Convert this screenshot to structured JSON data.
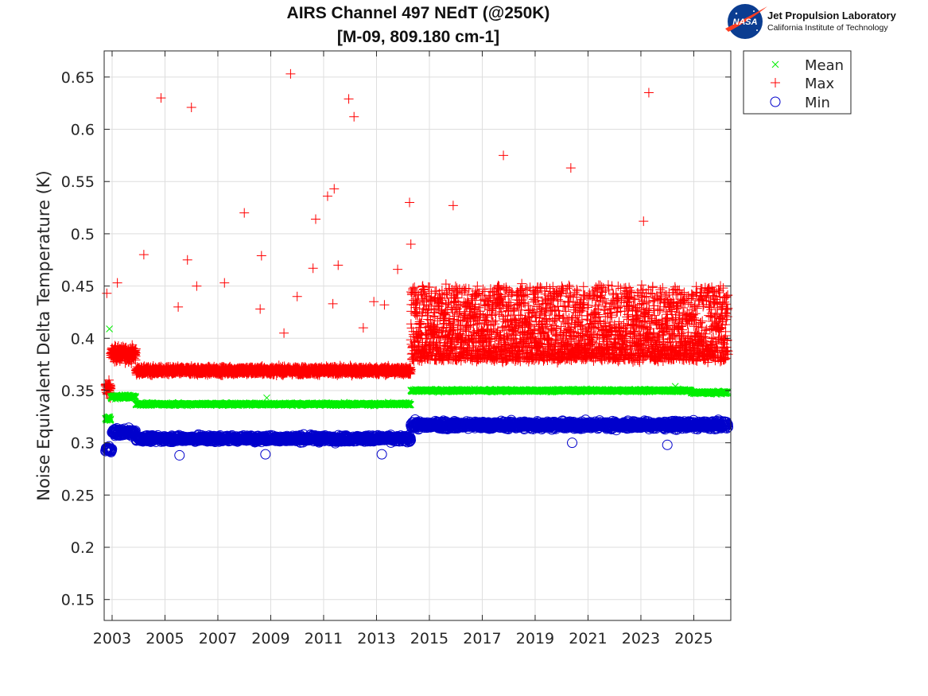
{
  "logo": {
    "name": "Jet Propulsion Laboratory",
    "subtitle": "California Institute of Technology",
    "badge": "NASA"
  },
  "colors": {
    "mean": "#00ee00",
    "max": "#ff0000",
    "min": "#0000cc"
  },
  "chart_data": {
    "type": "scatter",
    "title": "AIRS Channel 497 NEdT (@250K)",
    "subtitle": "[M-09, 809.180 cm-1]",
    "xlabel": "",
    "ylabel": "Noise Equivalent Delta Temperature (K)",
    "xlim": [
      2002.7,
      2026.4
    ],
    "ylim": [
      0.13,
      0.675
    ],
    "xticks": [
      2003,
      2005,
      2007,
      2009,
      2011,
      2013,
      2015,
      2017,
      2019,
      2021,
      2023,
      2025
    ],
    "xtick_labels": [
      "2003",
      "2005",
      "2007",
      "2009",
      "2011",
      "2013",
      "2015",
      "2017",
      "2019",
      "2021",
      "2023",
      "2025"
    ],
    "yticks": [
      0.15,
      0.2,
      0.25,
      0.3,
      0.35,
      0.4,
      0.45,
      0.5,
      0.55,
      0.6,
      0.65
    ],
    "ytick_labels": [
      "0.15",
      "0.2",
      "0.25",
      "0.3",
      "0.35",
      "0.4",
      "0.45",
      "0.5",
      "0.55",
      "0.6",
      "0.65"
    ],
    "grid": true,
    "legend_position": "outside-top-right",
    "series": [
      {
        "name": "Mean",
        "marker": "x",
        "segments": [
          {
            "x": [
              2002.75,
              2002.95
            ],
            "level": 0.323,
            "spread": 0.004
          },
          {
            "x": [
              2002.95,
              2003.9
            ],
            "level": 0.344,
            "spread": 0.003
          },
          {
            "x": [
              2003.9,
              2014.3
            ],
            "level": 0.337,
            "spread": 0.002
          },
          {
            "x": [
              2014.3,
              2024.9
            ],
            "level": 0.35,
            "spread": 0.002
          },
          {
            "x": [
              2024.9,
              2026.3
            ],
            "level": 0.348,
            "spread": 0.002
          }
        ],
        "outliers": [
          [
            2002.9,
            0.409
          ],
          [
            2008.85,
            0.343
          ],
          [
            2024.3,
            0.354
          ]
        ]
      },
      {
        "name": "Max",
        "marker": "+",
        "segments": [
          {
            "x": [
              2002.75,
              2002.95
            ],
            "level": 0.352,
            "spread": 0.012
          },
          {
            "x": [
              2002.95,
              2003.9
            ],
            "level": 0.385,
            "spread": 0.012
          },
          {
            "x": [
              2003.9,
              2014.3
            ],
            "level": 0.369,
            "spread": 0.006
          },
          {
            "x": [
              2014.3,
              2026.3
            ],
            "level": 0.405,
            "spread": 0.035
          }
        ],
        "outliers": [
          [
            2002.8,
            0.443
          ],
          [
            2003.2,
            0.453
          ],
          [
            2004.2,
            0.48
          ],
          [
            2004.85,
            0.63
          ],
          [
            2005.85,
            0.475
          ],
          [
            2006.0,
            0.621
          ],
          [
            2006.2,
            0.45
          ],
          [
            2007.25,
            0.453
          ],
          [
            2008.0,
            0.52
          ],
          [
            2008.65,
            0.479
          ],
          [
            2008.6,
            0.428
          ],
          [
            2009.75,
            0.653
          ],
          [
            2010.0,
            0.44
          ],
          [
            2010.6,
            0.467
          ],
          [
            2010.7,
            0.514
          ],
          [
            2011.15,
            0.536
          ],
          [
            2011.4,
            0.543
          ],
          [
            2011.55,
            0.47
          ],
          [
            2011.35,
            0.433
          ],
          [
            2011.95,
            0.629
          ],
          [
            2012.15,
            0.612
          ],
          [
            2012.9,
            0.435
          ],
          [
            2013.8,
            0.466
          ],
          [
            2014.25,
            0.53
          ],
          [
            2014.3,
            0.49
          ],
          [
            2015.9,
            0.527
          ],
          [
            2017.8,
            0.575
          ],
          [
            2020.35,
            0.563
          ],
          [
            2023.1,
            0.512
          ],
          [
            2023.3,
            0.635
          ],
          [
            2005.5,
            0.43
          ],
          [
            2009.5,
            0.405
          ],
          [
            2012.5,
            0.41
          ],
          [
            2013.3,
            0.432
          ]
        ]
      },
      {
        "name": "Min",
        "marker": "o",
        "segments": [
          {
            "x": [
              2002.75,
              2003.0
            ],
            "level": 0.294,
            "spread": 0.004
          },
          {
            "x": [
              2003.0,
              2003.9
            ],
            "level": 0.31,
            "spread": 0.006
          },
          {
            "x": [
              2003.9,
              2014.3
            ],
            "level": 0.304,
            "spread": 0.005
          },
          {
            "x": [
              2014.3,
              2026.3
            ],
            "level": 0.317,
            "spread": 0.006
          }
        ],
        "outliers": [
          [
            2005.55,
            0.288
          ],
          [
            2008.8,
            0.289
          ],
          [
            2013.2,
            0.289
          ],
          [
            2020.4,
            0.3
          ],
          [
            2024.0,
            0.298
          ]
        ]
      }
    ]
  }
}
